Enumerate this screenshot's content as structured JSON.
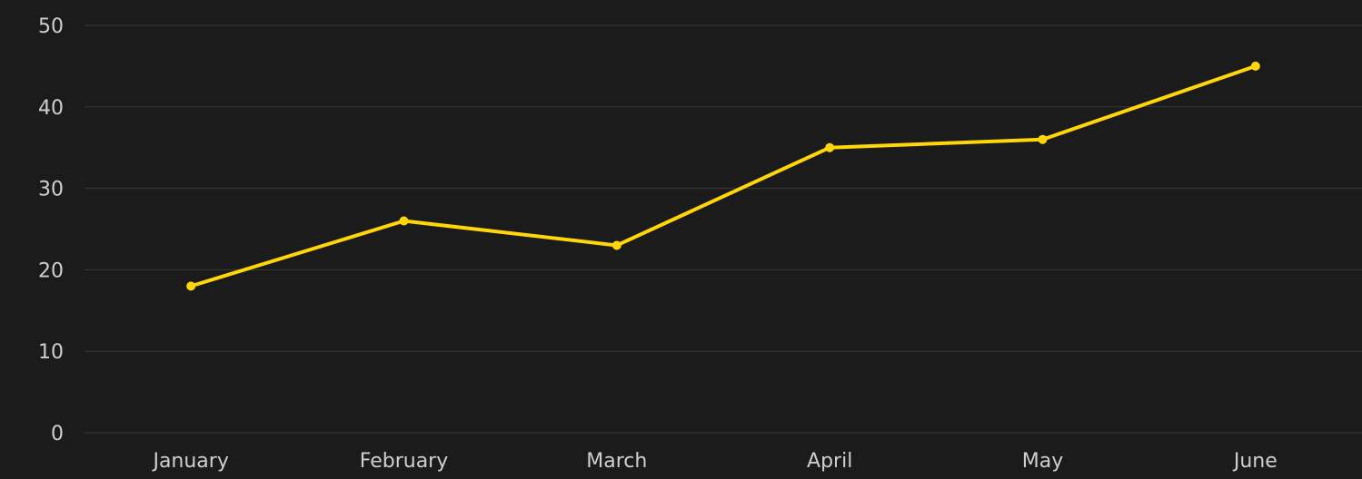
{
  "chart_data": {
    "type": "line",
    "categories": [
      "January",
      "February",
      "March",
      "April",
      "May",
      "June"
    ],
    "values": [
      18,
      26,
      23,
      35,
      36,
      45
    ],
    "color": "#ffd60a",
    "ylim": [
      0,
      50
    ],
    "yticks": [
      0,
      10,
      20,
      30,
      40,
      50
    ],
    "grid": true
  }
}
